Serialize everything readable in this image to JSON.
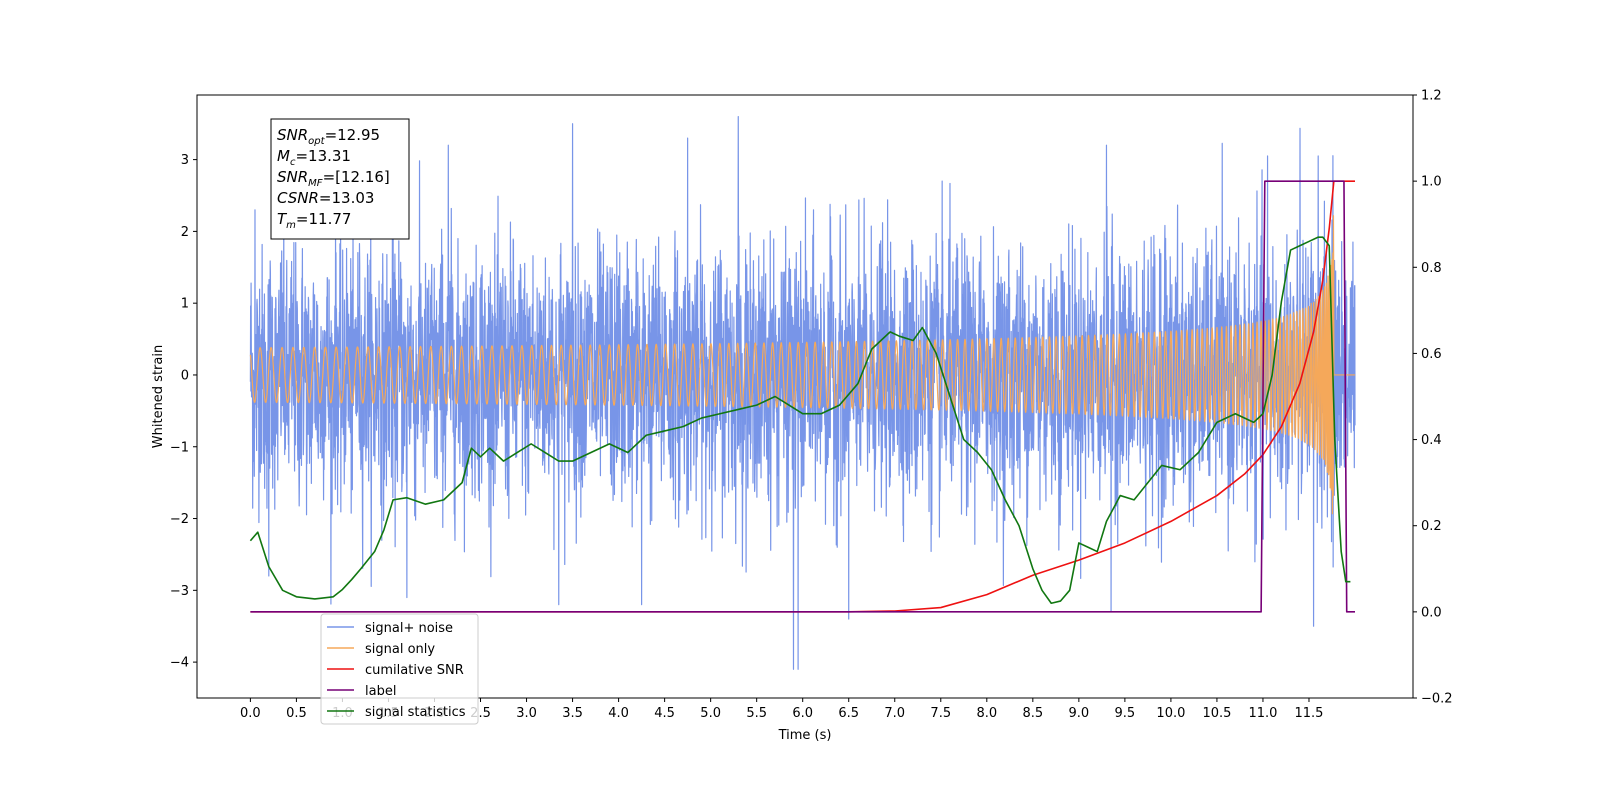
{
  "chart_data": {
    "type": "line",
    "xlabel": "Time (s)",
    "ylabel": "Whitened strain",
    "xlim": [
      -0.58,
      12.63
    ],
    "ylim_left": [
      -4.5,
      3.9
    ],
    "ylim_right": [
      -0.2,
      1.2
    ],
    "x_ticks": [
      0.0,
      0.5,
      1.0,
      1.5,
      2.0,
      2.5,
      3.0,
      3.5,
      4.0,
      4.5,
      5.0,
      5.5,
      6.0,
      6.5,
      7.0,
      7.5,
      8.0,
      8.5,
      9.0,
      9.5,
      10.0,
      10.5,
      11.0,
      11.5
    ],
    "x_tick_labels": [
      "0.0",
      "0.5",
      "1.0",
      "1.5",
      "2.0",
      "2.5",
      "3.0",
      "3.5",
      "4.0",
      "4.5",
      "5.0",
      "5.5",
      "6.0",
      "6.5",
      "7.0",
      "7.5",
      "8.0",
      "8.5",
      "9.0",
      "9.5",
      "10.0",
      "10.5",
      "11.0",
      "11.5"
    ],
    "y_ticks_left": [
      -4,
      -3,
      -2,
      -1,
      0,
      1,
      2,
      3
    ],
    "y_tick_labels_left": [
      "−4",
      "−3",
      "−2",
      "−1",
      "0",
      "1",
      "2",
      "3"
    ],
    "y_ticks_right": [
      -0.2,
      0.0,
      0.2,
      0.4,
      0.6,
      0.8,
      1.0,
      1.2
    ],
    "y_tick_labels_right": [
      "−0.2",
      "0.0",
      "0.2",
      "0.4",
      "0.6",
      "0.8",
      "1.0",
      "1.2"
    ],
    "grid": false,
    "legend_placement": "lower-left",
    "annotation": {
      "lines": [
        {
          "base": "SNR",
          "sub": "opt",
          "value": "=12.95"
        },
        {
          "base": "M",
          "sub": "c",
          "value": "=13.31"
        },
        {
          "base": "SNR",
          "sub": "MF",
          "value": "=[12.16]"
        },
        {
          "base": "CSNR",
          "sub": "",
          "value": "=13.03"
        },
        {
          "base": "T",
          "sub": "m",
          "value": "=11.77"
        }
      ]
    },
    "series": [
      {
        "name": "signal+ noise",
        "axis": "left",
        "color": "#7895e8",
        "generated": "noise",
        "t_start": 0.0,
        "t_end": 12.0,
        "noise_sigma": 0.85,
        "peaks": [
          [
            0.05,
            2.3
          ],
          [
            1.55,
            3.4
          ],
          [
            2.15,
            3.2
          ],
          [
            3.5,
            3.5
          ],
          [
            4.75,
            3.3
          ],
          [
            5.3,
            3.6
          ],
          [
            9.3,
            3.2
          ],
          [
            11.05,
            3.05
          ],
          [
            11.6,
            3.05
          ],
          [
            5.9,
            -4.1
          ],
          [
            5.95,
            -4.1
          ],
          [
            9.35,
            -3.3
          ],
          [
            6.5,
            -3.4
          ],
          [
            11.55,
            -3.5
          ],
          [
            3.35,
            -3.2
          ],
          [
            4.25,
            -3.2
          ],
          [
            1.7,
            -3.1
          ],
          [
            0.2,
            -2.8
          ]
        ]
      },
      {
        "name": "signal only",
        "axis": "left",
        "color": "#f5a85a",
        "generated": "chirp",
        "t_start": 0.0,
        "t_end": 12.0,
        "merger_time": 11.77,
        "peak_amplitude": 2.8
      },
      {
        "name": "cumilative SNR",
        "axis": "right",
        "color": "#ee1111",
        "x": [
          0.0,
          6.5,
          7.0,
          7.5,
          8.0,
          8.5,
          9.0,
          9.5,
          10.0,
          10.5,
          10.8,
          11.0,
          11.2,
          11.4,
          11.55,
          11.65,
          11.72,
          11.77,
          11.8,
          12.0
        ],
        "y": [
          0.0,
          0.0,
          0.002,
          0.01,
          0.04,
          0.085,
          0.12,
          0.16,
          0.21,
          0.27,
          0.32,
          0.365,
          0.43,
          0.53,
          0.65,
          0.77,
          0.89,
          1.0,
          1.0,
          1.0
        ]
      },
      {
        "name": "label",
        "axis": "right",
        "color": "#770077",
        "x": [
          0.0,
          10.98,
          11.02,
          11.88,
          11.91,
          12.0
        ],
        "y": [
          0.0,
          0.0,
          1.0,
          1.0,
          0.0,
          0.0
        ]
      },
      {
        "name": "signal statistics",
        "axis": "right",
        "color": "#117711",
        "x": [
          0.0,
          0.08,
          0.2,
          0.35,
          0.5,
          0.7,
          0.9,
          1.0,
          1.1,
          1.2,
          1.35,
          1.45,
          1.55,
          1.7,
          1.9,
          2.1,
          2.3,
          2.4,
          2.5,
          2.6,
          2.75,
          2.9,
          3.05,
          3.2,
          3.35,
          3.5,
          3.7,
          3.9,
          4.1,
          4.3,
          4.5,
          4.7,
          4.9,
          5.1,
          5.3,
          5.5,
          5.7,
          5.85,
          6.0,
          6.2,
          6.4,
          6.6,
          6.75,
          6.85,
          6.95,
          7.05,
          7.2,
          7.3,
          7.45,
          7.6,
          7.75,
          7.9,
          8.05,
          8.2,
          8.35,
          8.5,
          8.6,
          8.7,
          8.8,
          8.9,
          9.0,
          9.1,
          9.2,
          9.3,
          9.45,
          9.6,
          9.75,
          9.9,
          10.1,
          10.3,
          10.5,
          10.7,
          10.9,
          11.0,
          11.1,
          11.2,
          11.3,
          11.4,
          11.5,
          11.6,
          11.65,
          11.72,
          11.78,
          11.85,
          11.9,
          11.95
        ],
        "y": [
          0.165,
          0.185,
          0.105,
          0.05,
          0.035,
          0.03,
          0.035,
          0.052,
          0.075,
          0.1,
          0.14,
          0.19,
          0.26,
          0.265,
          0.25,
          0.26,
          0.3,
          0.38,
          0.36,
          0.38,
          0.35,
          0.37,
          0.39,
          0.37,
          0.35,
          0.35,
          0.37,
          0.39,
          0.37,
          0.41,
          0.42,
          0.43,
          0.45,
          0.46,
          0.47,
          0.48,
          0.5,
          0.48,
          0.46,
          0.46,
          0.48,
          0.53,
          0.61,
          0.63,
          0.65,
          0.64,
          0.63,
          0.66,
          0.6,
          0.5,
          0.4,
          0.37,
          0.33,
          0.26,
          0.2,
          0.1,
          0.05,
          0.02,
          0.025,
          0.05,
          0.16,
          0.15,
          0.14,
          0.21,
          0.27,
          0.26,
          0.3,
          0.34,
          0.33,
          0.37,
          0.44,
          0.46,
          0.44,
          0.46,
          0.55,
          0.72,
          0.84,
          0.85,
          0.86,
          0.87,
          0.87,
          0.85,
          0.4,
          0.14,
          0.07,
          0.07
        ]
      }
    ]
  }
}
